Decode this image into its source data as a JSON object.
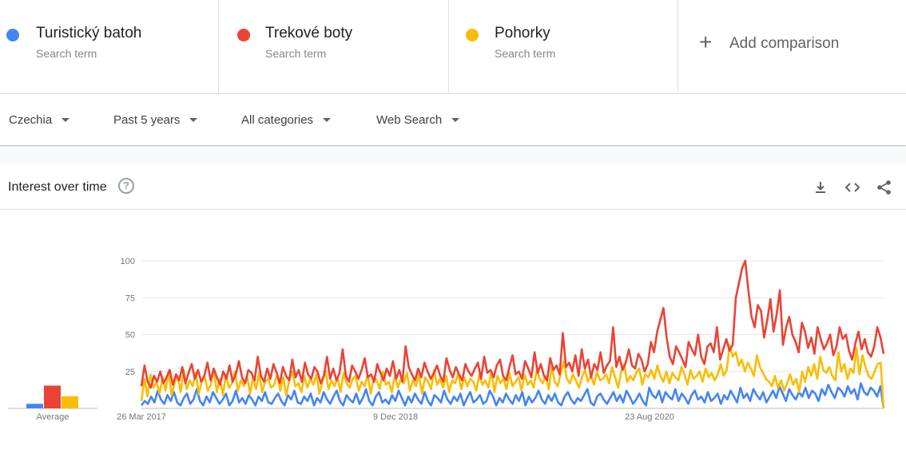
{
  "terms": [
    {
      "name": "Turistický batoh",
      "sub": "Search term",
      "color": "#4285f4"
    },
    {
      "name": "Trekové boty",
      "sub": "Search term",
      "color": "#ea4335"
    },
    {
      "name": "Pohorky",
      "sub": "Search term",
      "color": "#fbbc04"
    }
  ],
  "add_comparison": {
    "icon": "plus-icon",
    "label": "Add comparison"
  },
  "filters": {
    "region": "Czechia",
    "time": "Past 5 years",
    "category": "All categories",
    "search_type": "Web Search"
  },
  "card": {
    "title": "Interest over time",
    "help_icon": "help-circle-icon",
    "tools": [
      "download-icon",
      "embed-code-icon",
      "share-icon"
    ]
  },
  "chart_data": [
    {
      "type": "bar",
      "title": "",
      "xlabel": "Average",
      "ylabel": "",
      "categories": [
        "Turistický batoh",
        "Trekové boty",
        "Pohorky"
      ],
      "values": [
        6,
        30,
        16
      ],
      "ylim": [
        0,
        100
      ],
      "colors": [
        "#4285f4",
        "#ea4335",
        "#fbbc04"
      ]
    },
    {
      "type": "line",
      "title": "",
      "xlabel": "",
      "ylabel": "",
      "x_range": [
        "2017-03-26",
        "2022-03-20"
      ],
      "x_tick_labels": [
        "26 Mar 2017",
        "9 Dec 2018",
        "23 Aug 2020"
      ],
      "y_tick_labels": [
        "100",
        "75",
        "50",
        "25"
      ],
      "ylim": [
        0,
        100
      ],
      "grid": true,
      "series": [
        {
          "name": "Turistický batoh",
          "color": "#4285f4",
          "values": [
            2,
            5,
            3,
            8,
            4,
            12,
            6,
            3,
            9,
            5,
            11,
            4,
            2,
            7,
            10,
            3,
            6,
            13,
            5,
            2,
            8,
            4,
            11,
            7,
            3,
            6,
            10,
            2,
            5,
            12,
            4,
            7,
            3,
            9,
            6,
            2,
            8,
            5,
            11,
            4,
            3,
            7,
            10,
            5,
            2,
            9,
            6,
            12,
            4,
            3,
            8,
            5,
            10,
            2,
            7,
            4,
            11,
            6,
            3,
            8,
            12,
            5,
            2,
            9,
            6,
            4,
            10,
            3,
            7,
            13,
            5,
            2,
            8,
            11,
            4,
            6,
            3,
            9,
            5,
            12,
            7,
            2,
            8,
            4,
            10,
            6,
            3,
            11,
            5,
            2,
            9,
            7,
            4,
            12,
            6,
            3,
            8,
            5,
            10,
            2,
            7,
            11,
            4,
            6,
            9,
            3,
            5,
            12,
            8,
            2,
            7,
            4,
            10,
            6,
            3,
            9,
            5,
            11,
            2,
            8,
            4,
            7,
            12,
            6,
            3,
            9,
            5,
            10,
            4,
            2,
            8,
            11,
            6,
            3,
            7,
            5,
            9,
            13,
            4,
            2,
            8,
            10,
            6,
            3,
            7,
            11,
            5,
            9,
            4,
            12,
            8,
            3,
            6,
            10,
            5,
            2,
            14,
            9,
            7,
            12,
            4,
            11,
            8,
            6,
            13,
            5,
            10,
            7,
            3,
            9,
            12,
            6,
            8,
            4,
            11,
            5,
            7,
            10,
            3,
            9,
            6,
            12,
            8,
            4,
            14,
            7,
            10,
            5,
            13,
            9,
            6,
            11,
            4,
            8,
            12,
            7,
            15,
            10,
            5,
            13,
            9,
            6,
            11,
            8,
            14,
            7,
            12,
            10,
            5,
            13,
            9,
            16,
            11,
            7,
            14,
            12,
            8,
            15,
            10,
            13,
            6,
            17,
            11,
            9,
            14,
            12,
            8,
            15,
            0
          ]
        },
        {
          "name": "Trekové boty",
          "color": "#ea4335",
          "values": [
            15,
            29,
            18,
            14,
            22,
            18,
            25,
            17,
            21,
            26,
            16,
            23,
            19,
            28,
            17,
            24,
            30,
            20,
            26,
            18,
            22,
            31,
            19,
            27,
            21,
            16,
            25,
            20,
            29,
            18,
            23,
            32,
            21,
            17,
            26,
            24,
            19,
            35,
            22,
            18,
            27,
            20,
            30,
            24,
            17,
            28,
            22,
            19,
            33,
            21,
            26,
            18,
            31,
            23,
            20,
            28,
            25,
            17,
            22,
            35,
            20,
            27,
            19,
            24,
            40,
            22,
            18,
            29,
            25,
            20,
            26,
            34,
            21,
            23,
            18,
            30,
            24,
            19,
            27,
            22,
            32,
            20,
            26,
            18,
            42,
            28,
            23,
            19,
            27,
            21,
            31,
            25,
            20,
            24,
            29,
            22,
            18,
            34,
            26,
            21,
            28,
            23,
            19,
            30,
            25,
            22,
            27,
            31,
            20,
            35,
            24,
            26,
            21,
            29,
            33,
            22,
            19,
            28,
            36,
            23,
            25,
            20,
            32,
            27,
            21,
            38,
            24,
            30,
            22,
            19,
            34,
            26,
            29,
            23,
            51,
            28,
            31,
            25,
            36,
            22,
            40,
            27,
            33,
            21,
            30,
            26,
            38,
            24,
            29,
            32,
            55,
            28,
            35,
            26,
            31,
            40,
            29,
            27,
            37,
            33,
            25,
            30,
            45,
            38,
            52,
            60,
            68,
            48,
            35,
            30,
            42,
            38,
            33,
            28,
            45,
            40,
            36,
            50,
            35,
            30,
            42,
            44,
            38,
            55,
            33,
            40,
            47,
            39,
            43,
            75,
            85,
            95,
            100,
            80,
            62,
            55,
            70,
            66,
            48,
            60,
            74,
            52,
            64,
            80,
            43,
            55,
            62,
            50,
            45,
            38,
            58,
            52,
            41,
            48,
            37,
            55,
            47,
            40,
            44,
            50,
            36,
            42,
            55,
            47,
            50,
            39,
            33,
            44,
            52,
            40,
            47,
            38,
            35,
            42,
            55,
            48,
            37
          ]
        },
        {
          "name": "Pohorky",
          "color": "#fbbc04",
          "values": [
            5,
            20,
            8,
            23,
            14,
            18,
            10,
            21,
            12,
            25,
            9,
            17,
            22,
            11,
            26,
            13,
            19,
            15,
            24,
            10,
            18,
            21,
            12,
            16,
            27,
            11,
            20,
            9,
            23,
            14,
            17,
            25,
            12,
            19,
            15,
            22,
            10,
            21,
            13,
            24,
            11,
            18,
            20,
            14,
            16,
            23,
            12,
            21,
            9,
            19,
            25,
            15,
            17,
            11,
            22,
            14,
            20,
            16,
            23,
            10,
            18,
            26,
            13,
            19,
            15,
            21,
            11,
            24,
            17,
            14,
            20,
            22,
            12,
            18,
            15,
            23,
            10,
            21,
            19,
            13,
            25,
            16,
            18,
            11,
            22,
            14,
            20,
            17,
            24,
            12,
            19,
            15,
            23,
            10,
            21,
            18,
            13,
            26,
            16,
            20,
            14,
            22,
            11,
            19,
            17,
            24,
            13,
            21,
            15,
            20,
            18,
            12,
            23,
            16,
            19,
            14,
            25,
            11,
            22,
            17,
            20,
            13,
            24,
            15,
            18,
            21,
            12,
            23,
            16,
            19,
            14,
            26,
            20,
            17,
            22,
            13,
            28,
            18,
            15,
            24,
            32,
            20,
            17,
            23,
            19,
            14,
            21,
            26,
            18,
            22,
            16,
            25,
            19,
            20,
            23,
            17,
            28,
            21,
            14,
            25,
            30,
            18,
            22,
            19,
            24,
            27,
            16,
            23,
            21,
            26,
            20,
            29,
            22,
            18,
            25,
            17,
            24,
            21,
            19,
            28,
            23,
            16,
            26,
            20,
            22,
            25,
            18,
            27,
            21,
            24,
            19,
            23,
            30,
            22,
            26,
            43,
            35,
            38,
            29,
            33,
            25,
            31,
            27,
            22,
            36,
            28,
            24,
            20,
            18,
            15,
            22,
            14,
            19,
            12,
            17,
            23,
            16,
            20,
            11,
            25,
            18,
            28,
            22,
            30,
            20,
            35,
            26,
            24,
            28,
            22,
            19,
            38,
            25,
            30,
            20,
            27,
            24,
            41,
            23,
            36,
            28,
            22,
            20,
            25,
            30,
            31,
            0
          ]
        }
      ]
    }
  ]
}
